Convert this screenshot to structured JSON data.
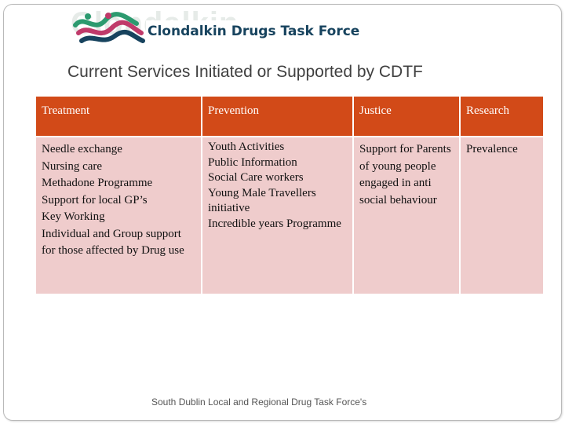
{
  "logo": {
    "org_name": "Clondalkin Drugs Task Force",
    "watermark_text": "Clondalkin",
    "mark_colors": [
      "#2c9a6f",
      "#c03a6a",
      "#17435e"
    ]
  },
  "title": "Current Services Initiated or Supported by CDTF",
  "table": {
    "headers": [
      "Treatment",
      "Prevention",
      "Justice",
      "Research"
    ],
    "columns": [
      [
        "Needle exchange",
        "Nursing care",
        "Methadone Programme",
        "Support for local GP’s",
        "Key Working",
        "Individual and Group support for those affected by Drug use"
      ],
      [
        "Youth Activities",
        "Public Information",
        "Social Care workers",
        "Young Male Travellers initiative",
        "Incredible years Programme"
      ],
      [
        "Support for Parents of young people engaged in anti social behaviour"
      ],
      [
        "Prevalence"
      ]
    ],
    "colors": {
      "header_bg": "#d24a18",
      "cell_bg": "#efcccc",
      "header_text": "#ffffff"
    }
  },
  "footer": "South Dublin Local and Regional Drug Task Force's"
}
